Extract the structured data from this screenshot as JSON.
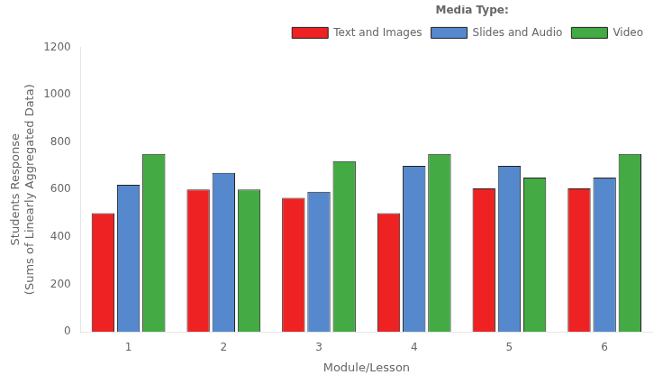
{
  "chart_data": {
    "type": "bar",
    "xlabel": "Module/Lesson",
    "ylabel": [
      "Students Response",
      "(Sums of Linearly Aggregated Data)"
    ],
    "categories": [
      1,
      2,
      3,
      4,
      5,
      6
    ],
    "series": [
      {
        "name": "Text and Images",
        "color": "#EE2222",
        "values": [
          500,
          600,
          565,
          500,
          605,
          605
        ]
      },
      {
        "name": "Slides and Audio",
        "color": "#5588CC",
        "values": [
          620,
          670,
          590,
          700,
          700,
          650
        ]
      },
      {
        "name": "Video",
        "color": "#44AA44",
        "values": [
          750,
          600,
          720,
          750,
          650,
          750
        ]
      }
    ],
    "legend_title": "Media Type:",
    "legend": "upper right",
    "ylim": [
      0,
      1200
    ],
    "yticks": [
      0,
      200,
      400,
      600,
      800,
      1000,
      1200
    ],
    "grid": false
  }
}
